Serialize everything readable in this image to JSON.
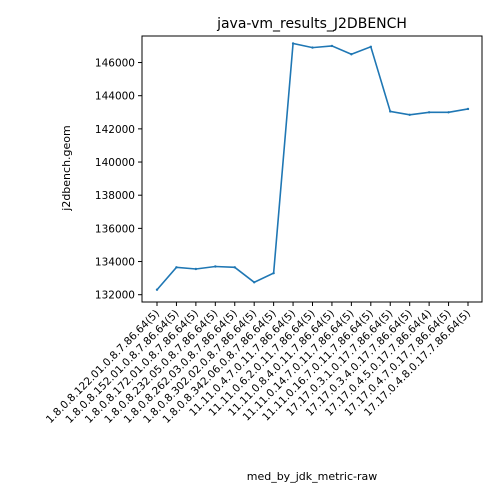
{
  "chart_data": {
    "type": "line",
    "title": "java-vm_results_J2DBENCH",
    "xlabel": "med_by_jdk_metric-raw",
    "ylabel": "j2dbench.geom",
    "categories": [
      "1.8.0.8.122.01.0.8.7.86.64(5)",
      "1.8.0.8.152.01.0.8.7.86.64(5)",
      "1.8.0.8.172.01.0.8.7.86.64(5)",
      "1.8.0.8.232.05.0.8.7.86.64(5)",
      "1.8.0.8.262.03.0.8.7.86.64(5)",
      "1.8.0.8.302.02.0.8.7.86.64(5)",
      "1.8.0.8.342.06.0.8.7.86.64(5)",
      "11.11.0.4.7.0.11.7.86.64(5)",
      "11.11.0.6.2.0.11.7.86.64(5)",
      "11.11.0.8.4.0.11.7.86.64(5)",
      "11.11.0.14.7.0.11.7.86.64(5)",
      "11.11.0.16.7.0.11.7.86.64(5)",
      "17.17.0.3.1.0.17.7.86.64(5)",
      "17.17.0.3.4.0.17.7.86.64(5)",
      "17.17.0.4.5.0.17.7.86.64(4)",
      "17.17.0.4.7.0.17.7.86.64(5)",
      "17.17.0.4.8.0.17.7.86.64(5)"
    ],
    "values": [
      132300,
      133650,
      133550,
      133700,
      133650,
      132750,
      133300,
      147150,
      146900,
      147000,
      146500,
      146950,
      143050,
      142850,
      143000,
      143000,
      143200
    ],
    "yticks": [
      132000,
      134000,
      136000,
      138000,
      140000,
      142000,
      144000,
      146000
    ],
    "ylim": [
      131560,
      147600
    ],
    "grid": false,
    "color": "#1f77b4"
  }
}
